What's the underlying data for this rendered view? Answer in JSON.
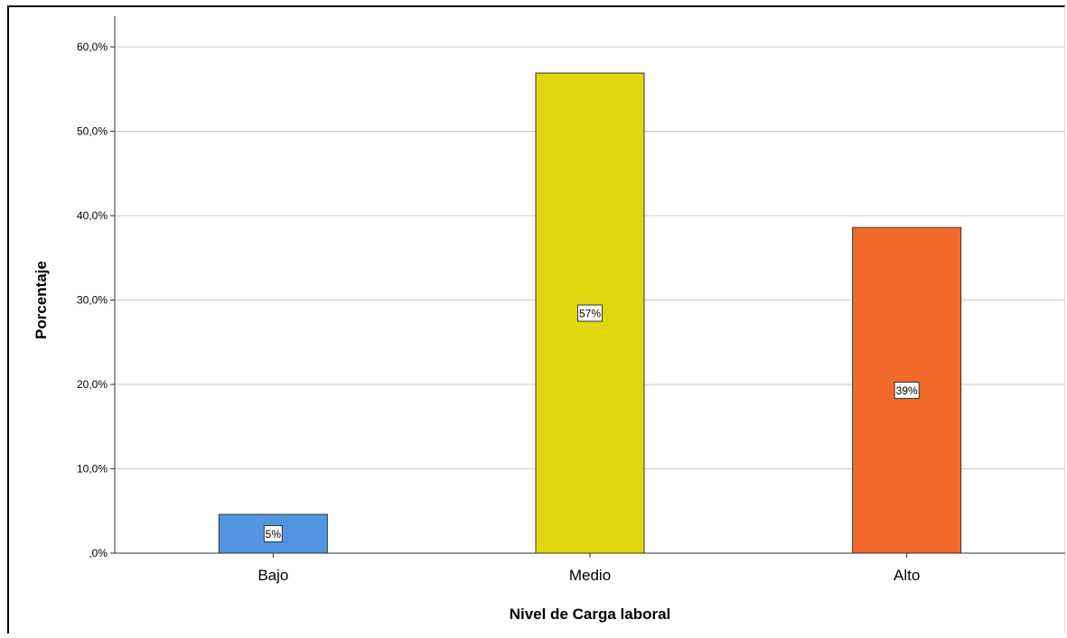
{
  "chart_data": {
    "type": "bar",
    "title": "",
    "xlabel": "Nivel de Carga laboral",
    "ylabel": "Porcentaje",
    "categories": [
      "Bajo",
      "Medio",
      "Alto"
    ],
    "values": [
      4.6,
      56.9,
      38.6
    ],
    "data_labels": [
      "5%",
      "57%",
      "39%"
    ],
    "colors": [
      "#5294e2",
      "#e2d70d",
      "#f26a2b"
    ],
    "ylim": [
      0,
      60
    ],
    "yticks": [
      0,
      10,
      20,
      30,
      40,
      50,
      60
    ],
    "ytick_labels": [
      ",0%",
      "10,0%",
      "20,0%",
      "30,0%",
      "40,0%",
      "50,0%",
      "60,0%"
    ],
    "grid": true,
    "legend": "none"
  }
}
